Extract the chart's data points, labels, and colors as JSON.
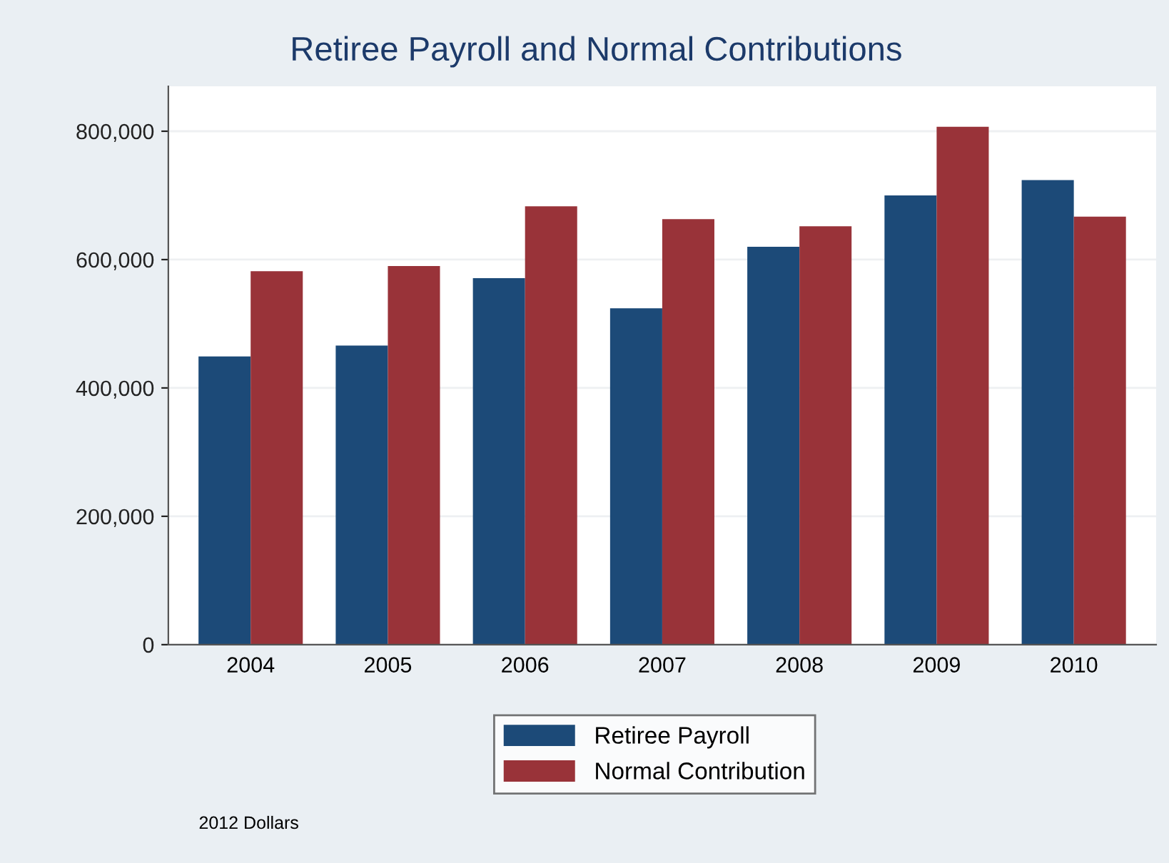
{
  "chart_data": {
    "type": "bar",
    "title": "Retiree Payroll and Normal Contributions",
    "categories": [
      "2004",
      "2005",
      "2006",
      "2007",
      "2008",
      "2009",
      "2010"
    ],
    "series": [
      {
        "name": "Retiree Payroll",
        "color": "#1c4a78",
        "values": [
          449000,
          466000,
          571000,
          524000,
          620000,
          700000,
          724000
        ]
      },
      {
        "name": "Normal Contribution",
        "color": "#993339",
        "values": [
          582000,
          590000,
          683000,
          663000,
          652000,
          807000,
          667000
        ]
      }
    ],
    "ylim": [
      0,
      870000
    ],
    "yticks": [
      {
        "value": 0,
        "label": "0"
      },
      {
        "value": 200000,
        "label": "200,000"
      },
      {
        "value": 400000,
        "label": "400,000"
      },
      {
        "value": 600000,
        "label": "600,000"
      },
      {
        "value": 800000,
        "label": "800,000"
      }
    ],
    "grid": "y",
    "legend": "bottom",
    "annotations": [
      "2012 Dollars"
    ]
  }
}
